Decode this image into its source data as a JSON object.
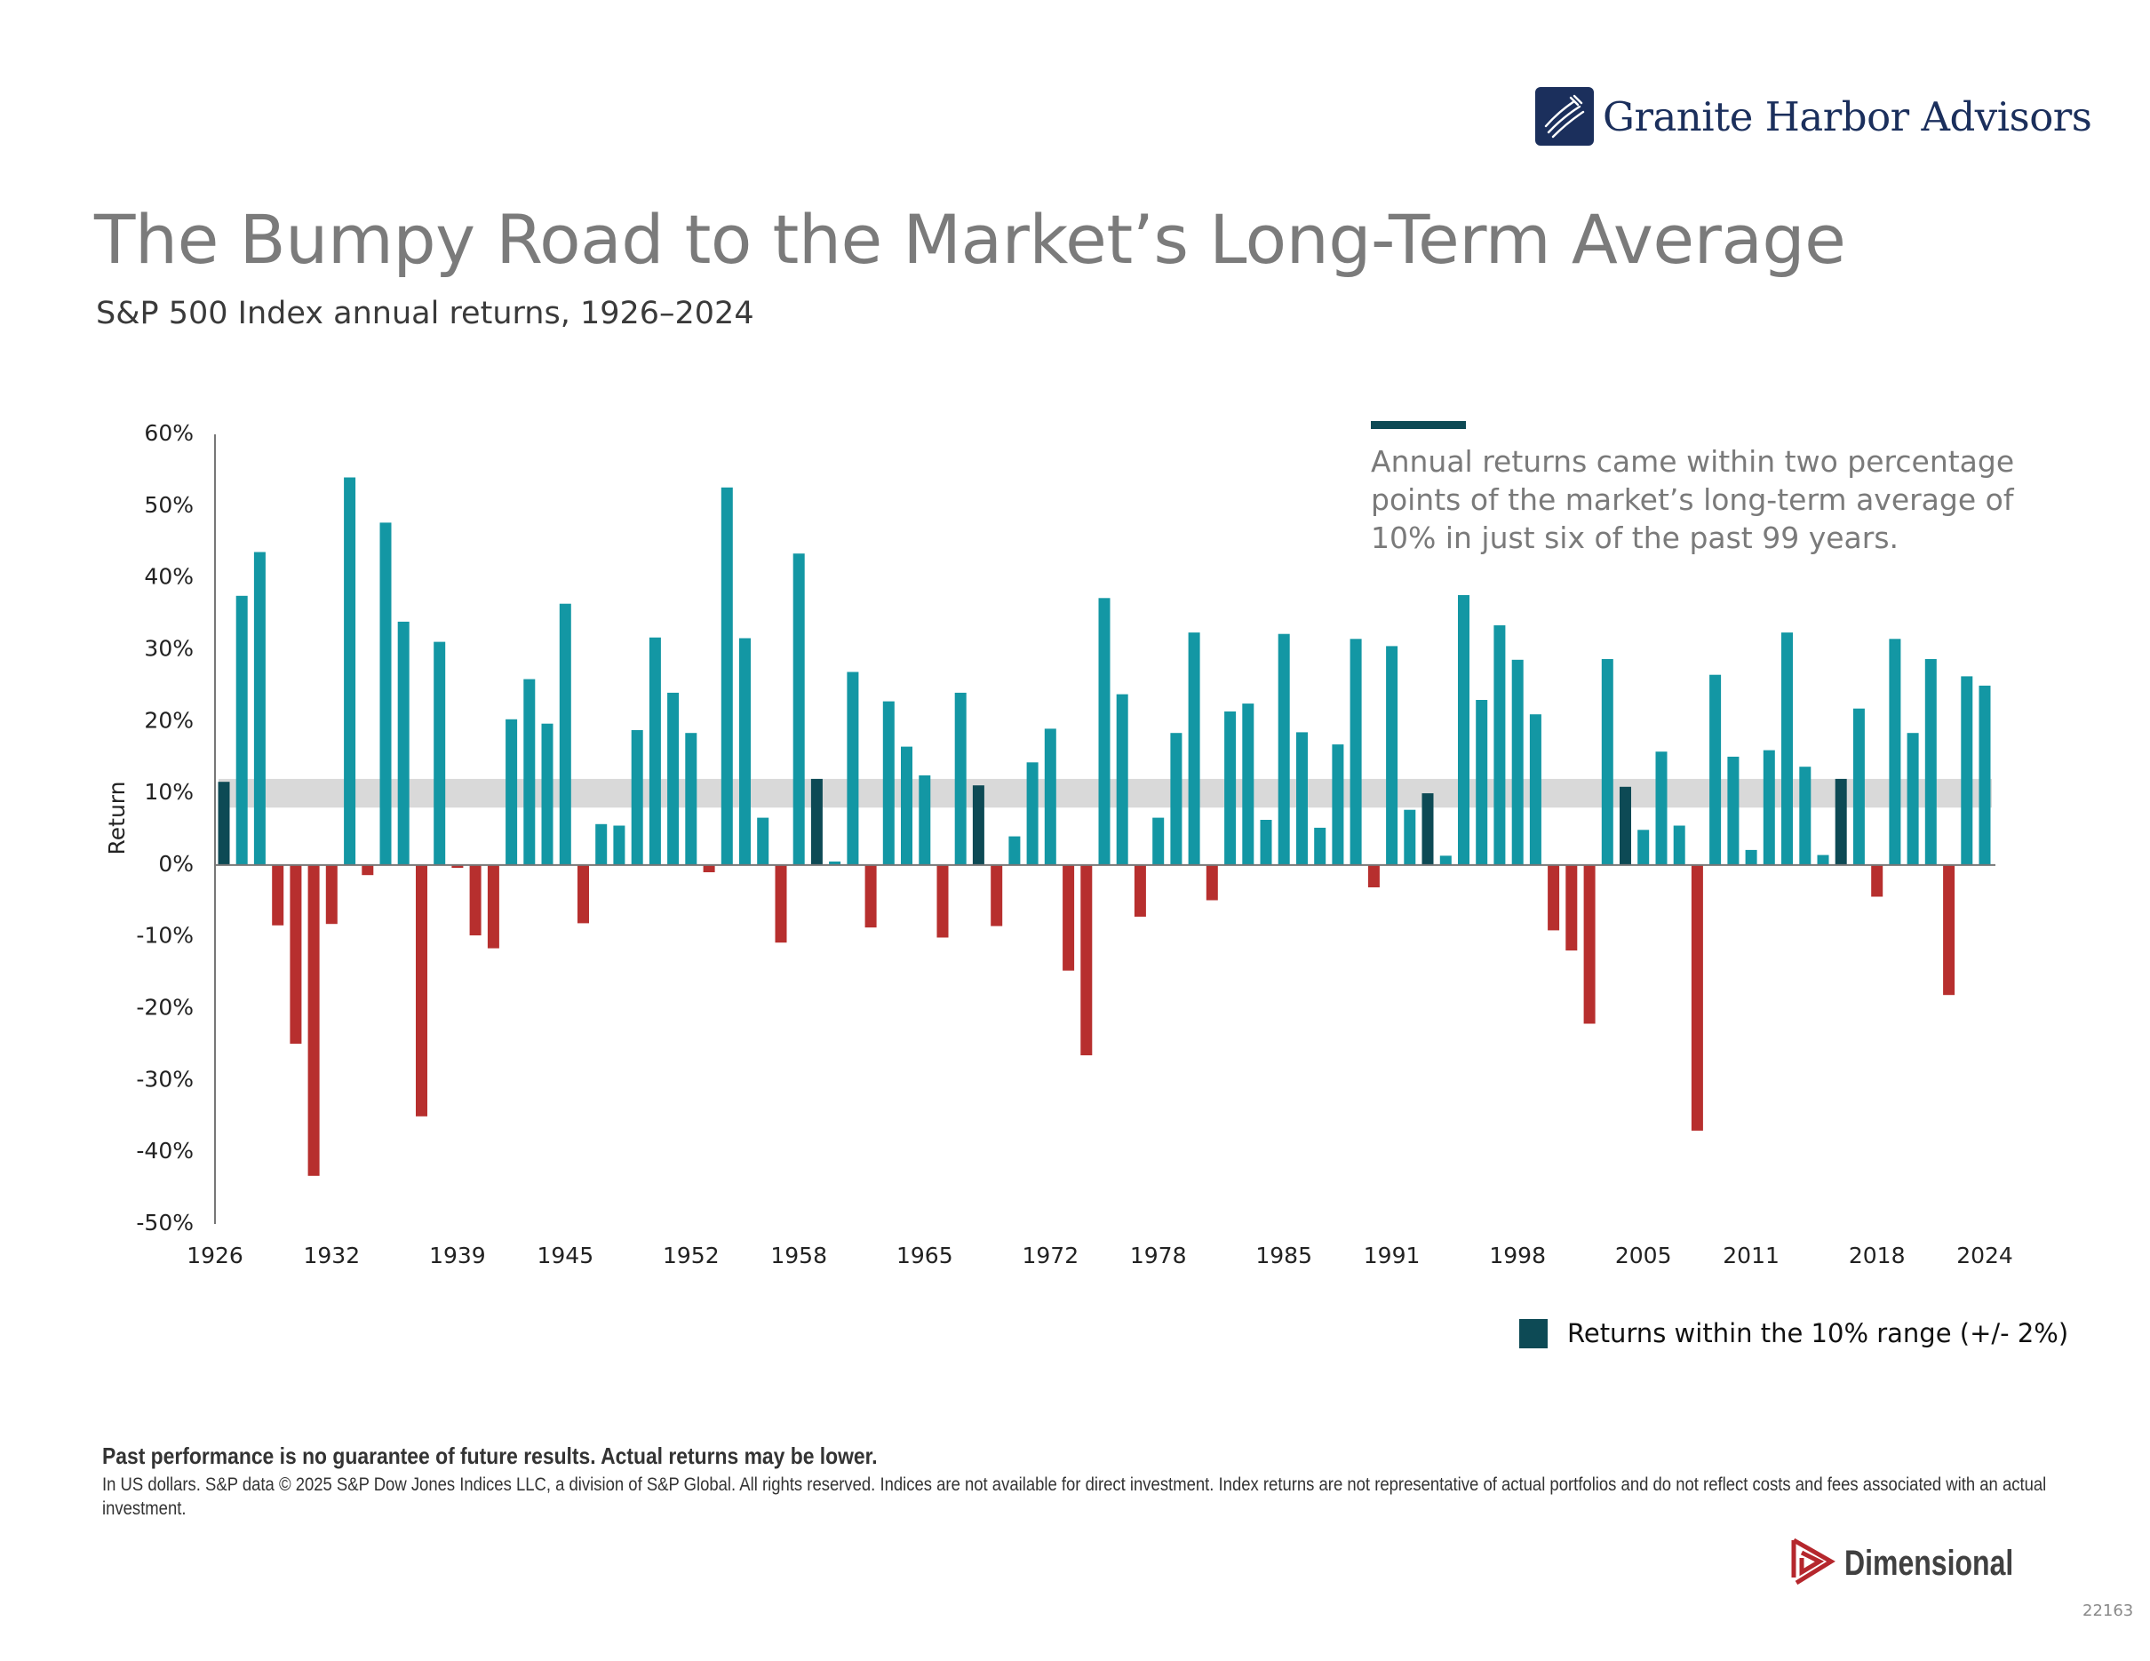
{
  "brand": {
    "name": "Granite Harbor Advisors",
    "logo_icon": "sailboat-rigging-icon",
    "color": "#1b2f5c"
  },
  "header": {
    "title": "The Bumpy Road to the Market’s Long-Term Average",
    "subtitle": "S&P 500 Index annual returns, 1926–2024"
  },
  "annotation": {
    "text": "Annual returns came within two percentage points of the market’s long-term average of 10% in just six of the past 99 years."
  },
  "legend": {
    "label": "Returns within the 10% range (+/- 2%)",
    "color": "#0d4a55"
  },
  "footer": {
    "disclaimer_bold": "Past performance is no guarantee of future results. Actual returns may be lower.",
    "disclaimer_text": "In US dollars. S&P data © 2025 S&P Dow Jones Indices LLC, a division of S&P Global. All rights reserved. Indices are not available for direct investment. Index returns are not representative of actual portfolios and do not reflect costs and fees associated with an actual investment.",
    "partner_name": "Dimensional",
    "partner_color": "#b5272d",
    "doc_id": "22163"
  },
  "chart_data": {
    "type": "bar",
    "title": "S&P 500 Index annual returns, 1926–2024",
    "xlabel": "",
    "ylabel": "Return",
    "ylim": [
      -50,
      60
    ],
    "yticks": [
      60,
      50,
      40,
      30,
      20,
      10,
      0,
      -10,
      -20,
      -30,
      -40,
      -50
    ],
    "ytick_labels": [
      "60%",
      "50%",
      "40%",
      "30%",
      "20%",
      "10%",
      "0%",
      "-10%",
      "-20%",
      "-30%",
      "-40%",
      "-50%"
    ],
    "xtick_labels": [
      "1926",
      "1932",
      "1939",
      "1945",
      "1952",
      "1958",
      "1965",
      "1972",
      "1978",
      "1985",
      "1991",
      "1998",
      "2005",
      "2011",
      "2018",
      "2024"
    ],
    "grid": false,
    "highlight_band": {
      "from": 8,
      "to": 12,
      "color": "#d9d9d9",
      "label": "10% average ± 2%"
    },
    "colors": {
      "positive": "#1397a4",
      "negative": "#b72f2e",
      "within_range": "#0d4a55"
    },
    "legend_position": "bottom-right",
    "start_year": 1926,
    "values": [
      11.6,
      37.5,
      43.6,
      -8.4,
      -24.9,
      -43.3,
      -8.2,
      54.0,
      -1.4,
      47.7,
      33.9,
      -35.0,
      31.1,
      -0.4,
      -9.8,
      -11.6,
      20.3,
      25.9,
      19.7,
      36.4,
      -8.1,
      5.7,
      5.5,
      18.8,
      31.7,
      24.0,
      18.4,
      -1.0,
      52.6,
      31.6,
      6.6,
      -10.8,
      43.4,
      12.0,
      0.5,
      26.9,
      -8.7,
      22.8,
      16.5,
      12.5,
      -10.1,
      24.0,
      11.1,
      -8.5,
      4.0,
      14.3,
      19.0,
      -14.7,
      -26.5,
      37.2,
      23.8,
      -7.2,
      6.6,
      18.4,
      32.4,
      -4.9,
      21.4,
      22.5,
      6.3,
      32.2,
      18.5,
      5.2,
      16.8,
      31.5,
      -3.1,
      30.5,
      7.7,
      10.0,
      1.3,
      37.6,
      23.0,
      33.4,
      28.6,
      21.0,
      -9.1,
      -11.9,
      -22.1,
      28.7,
      10.9,
      4.9,
      15.8,
      5.5,
      -37.0,
      26.5,
      15.1,
      2.1,
      16.0,
      32.4,
      13.7,
      1.4,
      12.0,
      21.8,
      -4.4,
      31.5,
      18.4,
      28.7,
      -18.1,
      26.3,
      25.0
    ],
    "highlighted_years": [
      1926,
      1959,
      1968,
      1993,
      2004,
      2016
    ]
  }
}
